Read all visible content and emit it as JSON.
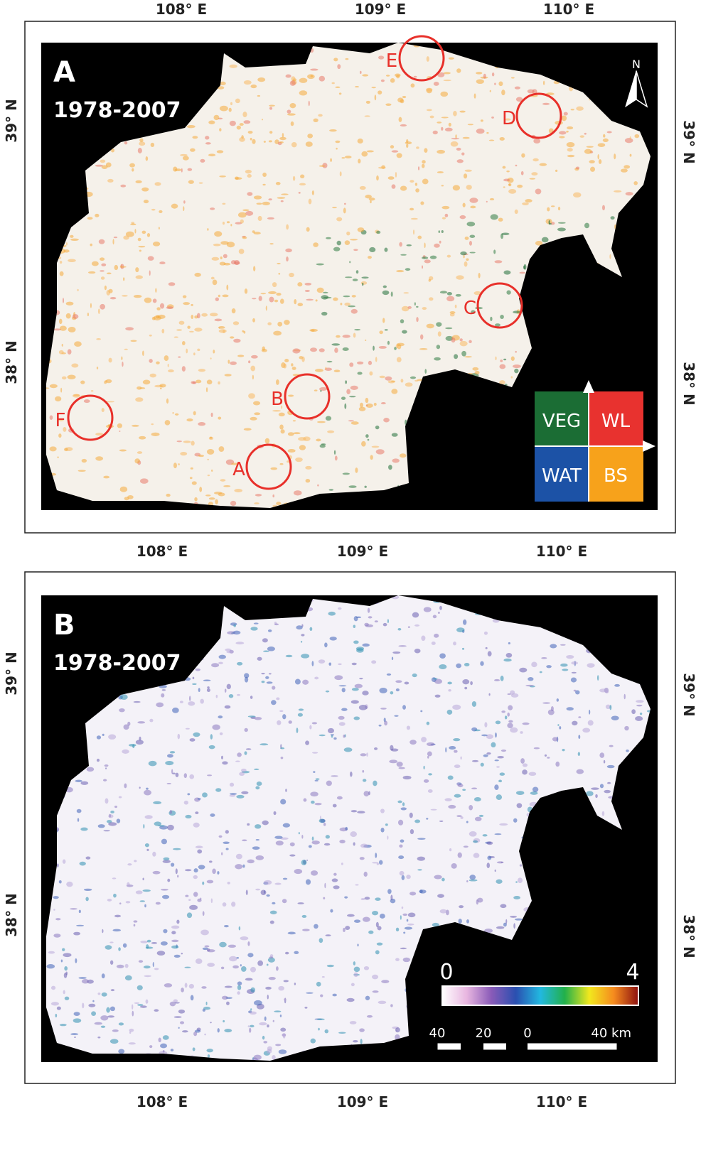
{
  "panels": [
    {
      "letter": "A",
      "period": "1978-2007",
      "top_labels": [
        "108° E",
        "109° E",
        "110° E"
      ],
      "bottom_labels": [
        "108° E",
        "109° E",
        "110° E"
      ],
      "left_labels": [
        "39° N",
        "38° N"
      ],
      "right_labels": [
        "39° N",
        "38° N"
      ],
      "north": "N",
      "circles": [
        "E",
        "D",
        "C",
        "B",
        "F",
        "A"
      ],
      "legend": {
        "cells": [
          {
            "label": "VEG",
            "color": "#1b6d34"
          },
          {
            "label": "WL",
            "color": "#e8322f"
          },
          {
            "label": "WAT",
            "color": "#1c52a6"
          },
          {
            "label": "BS",
            "color": "#f7a21b"
          }
        ]
      }
    },
    {
      "letter": "B",
      "period": "1978-2007",
      "bottom_labels": [
        "108° E",
        "109° E",
        "110° E"
      ],
      "left_labels": [
        "39° N",
        "38° N"
      ],
      "right_labels": [
        "39° N",
        "38° N"
      ],
      "colorbar": {
        "min": 0,
        "max": 4,
        "colors": [
          "#ffffff",
          "#e8b6e0",
          "#8a5bb8",
          "#2a4fb0",
          "#22b8e0",
          "#22b04a",
          "#f2e81e",
          "#f58a1e",
          "#8c1010"
        ]
      },
      "scalebar": {
        "labels": [
          "40",
          "20",
          "0",
          "40 km"
        ]
      }
    }
  ]
}
